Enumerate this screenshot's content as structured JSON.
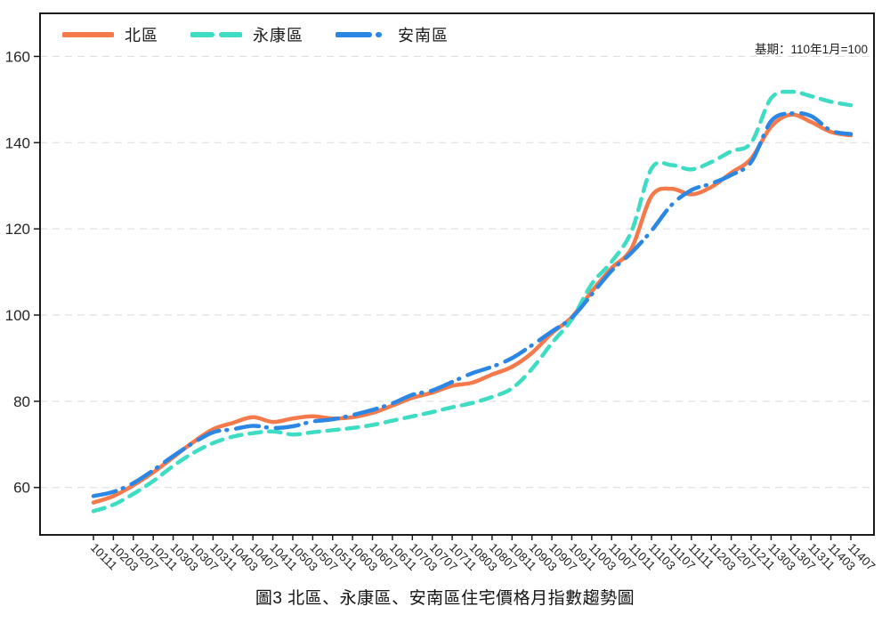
{
  "figure": {
    "caption": "圖3 北區、永康區、安南區住宅價格月指數趨勢圖"
  },
  "chart_data": {
    "type": "line",
    "title": "",
    "xlabel": "",
    "ylabel": "",
    "annotation": "基期：110年1月=100",
    "grid": "horizontal-dashed",
    "legend_position": "top-left-inside",
    "ylim": [
      49,
      170
    ],
    "y_ticks": [
      60,
      80,
      100,
      120,
      140,
      160
    ],
    "categories": [
      "10111",
      "10203",
      "10207",
      "10211",
      "10303",
      "10307",
      "10311",
      "10403",
      "10407",
      "10411",
      "10503",
      "10507",
      "10511",
      "10603",
      "10607",
      "10611",
      "10703",
      "10707",
      "10711",
      "10803",
      "10807",
      "10811",
      "10903",
      "10907",
      "10911",
      "11003",
      "11007",
      "11011",
      "11103",
      "11107",
      "11111",
      "11203",
      "11207",
      "11211",
      "11303",
      "11307",
      "11311",
      "11403",
      "11407"
    ],
    "series": [
      {
        "name": "北區",
        "color": "#F4794B",
        "style": "solid",
        "values": [
          56.5,
          58.0,
          60.5,
          63.5,
          67.0,
          70.5,
          73.5,
          75.0,
          76.3,
          75.2,
          76.0,
          76.5,
          76.0,
          76.3,
          77.3,
          79.0,
          80.8,
          82.0,
          83.6,
          84.3,
          86.2,
          88.0,
          91.2,
          95.8,
          99.5,
          105.5,
          110.9,
          115.5,
          127.6,
          129.3,
          128.0,
          129.7,
          133.0,
          136.3,
          143.7,
          146.5,
          144.8,
          142.5,
          141.7
        ]
      },
      {
        "name": "永康區",
        "color": "#3FDCC4",
        "style": "dashed",
        "values": [
          54.5,
          56.0,
          58.5,
          61.5,
          65.0,
          68.0,
          70.3,
          71.8,
          72.6,
          73.0,
          72.3,
          72.8,
          73.3,
          73.8,
          74.5,
          75.5,
          76.5,
          77.5,
          78.6,
          79.6,
          81.0,
          83.0,
          87.5,
          93.5,
          99.0,
          107.2,
          112.4,
          119.5,
          134.0,
          134.8,
          133.8,
          135.5,
          138.0,
          140.0,
          150.3,
          151.8,
          150.8,
          149.5,
          148.7
        ]
      },
      {
        "name": "安南區",
        "color": "#2B87E3",
        "style": "dashdot",
        "values": [
          58.0,
          59.0,
          61.0,
          64.0,
          67.3,
          70.3,
          72.8,
          73.5,
          74.3,
          73.8,
          74.2,
          75.3,
          75.8,
          76.8,
          78.0,
          79.5,
          81.5,
          82.5,
          84.5,
          86.5,
          88.0,
          90.0,
          93.0,
          96.2,
          99.4,
          104.8,
          110.3,
          114.5,
          119.6,
          125.5,
          129.0,
          130.5,
          132.5,
          135.5,
          145.0,
          146.8,
          146.2,
          142.8,
          142.0
        ]
      }
    ]
  },
  "style": {
    "background": "#ffffff",
    "grid_color": "#dce2e5",
    "axis_color": "#1a1a1a",
    "tick_label_color": "#262626"
  }
}
